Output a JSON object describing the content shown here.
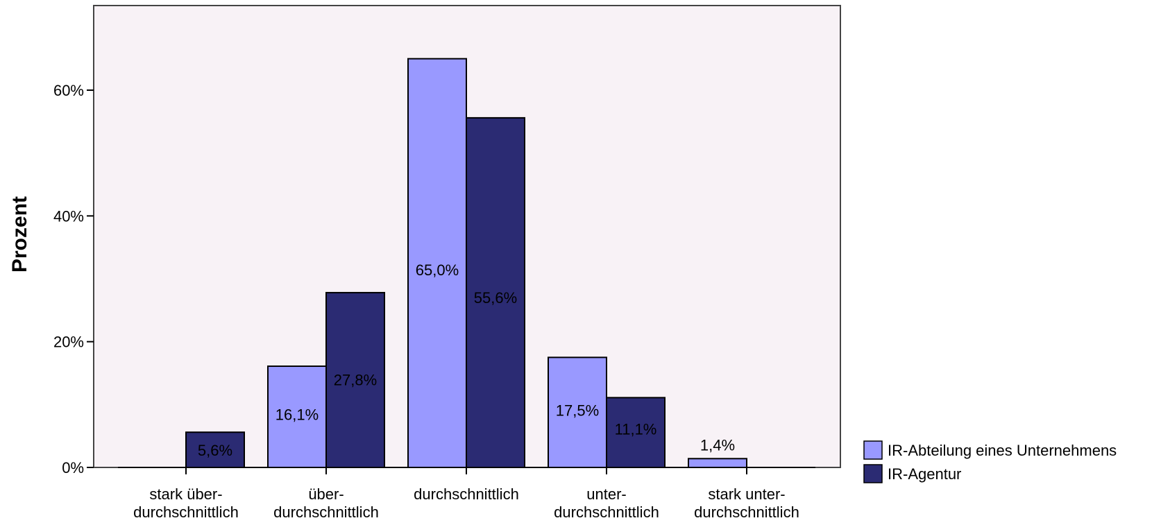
{
  "chart_data": {
    "type": "bar",
    "title": "",
    "xlabel": "",
    "ylabel": "Prozent",
    "ylim": [
      0,
      72
    ],
    "yticks": [
      {
        "value": 0,
        "label": "0%"
      },
      {
        "value": 20,
        "label": "20%"
      },
      {
        "value": 40,
        "label": "40%"
      },
      {
        "value": 60,
        "label": "60%"
      }
    ],
    "categories": [
      [
        "stark über-",
        "durchschnittlich"
      ],
      [
        "über-",
        "durchschnittlich"
      ],
      [
        "durchschnittlich"
      ],
      [
        "unter-",
        "durchschnittlich"
      ],
      [
        "stark unter-",
        "durchschnittlich"
      ]
    ],
    "series": [
      {
        "name": "IR-Abteilung eines Unternehmens",
        "color": "#9999ff",
        "values": [
          0,
          16.1,
          65.0,
          17.5,
          1.4
        ],
        "labels": [
          "",
          "16,1%",
          "65,0%",
          "17,5%",
          "1,4%"
        ]
      },
      {
        "name": "IR-Agentur",
        "color": "#2b2b73",
        "values": [
          5.6,
          27.8,
          55.6,
          11.1,
          0
        ],
        "labels": [
          "5,6%",
          "27,8%",
          "55,6%",
          "11,1%",
          ""
        ]
      }
    ],
    "grid": false,
    "legend_position": "bottom-right",
    "plot_background": "#f8f2f6"
  }
}
